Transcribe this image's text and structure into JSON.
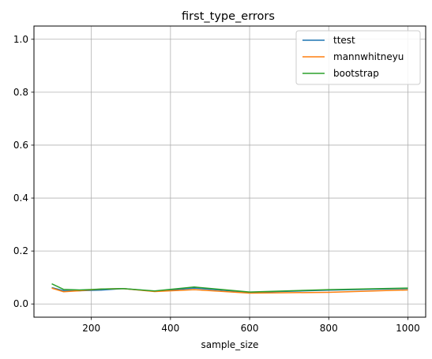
{
  "chart_data": {
    "type": "line",
    "title": "first_type_errors",
    "xlabel": "sample_size",
    "ylabel": "",
    "xlim": [
      55,
      1045
    ],
    "ylim": [
      -0.05,
      1.05
    ],
    "xticks": [
      200,
      400,
      600,
      800,
      1000
    ],
    "xtick_labels": [
      "200",
      "400",
      "600",
      "800",
      "1000"
    ],
    "yticks": [
      0.0,
      0.2,
      0.4,
      0.6,
      0.8,
      1.0
    ],
    "ytick_labels": [
      "0.0",
      "0.2",
      "0.4",
      "0.6",
      "0.8",
      "1.0"
    ],
    "grid": true,
    "legend_position": "upper right",
    "x": [
      100,
      130,
      170,
      220,
      280,
      360,
      460,
      600,
      800,
      1000
    ],
    "series": [
      {
        "name": "ttest",
        "color": "#1f77b4",
        "values": [
          0.062,
          0.05,
          0.05,
          0.052,
          0.058,
          0.048,
          0.06,
          0.044,
          0.052,
          0.058
        ]
      },
      {
        "name": "mannwhitneyu",
        "color": "#ff7f0e",
        "values": [
          0.06,
          0.046,
          0.05,
          0.056,
          0.058,
          0.047,
          0.054,
          0.041,
          0.044,
          0.053
        ]
      },
      {
        "name": "bootstrap",
        "color": "#2ca02c",
        "values": [
          0.076,
          0.055,
          0.053,
          0.056,
          0.058,
          0.049,
          0.064,
          0.045,
          0.054,
          0.06
        ]
      }
    ]
  }
}
